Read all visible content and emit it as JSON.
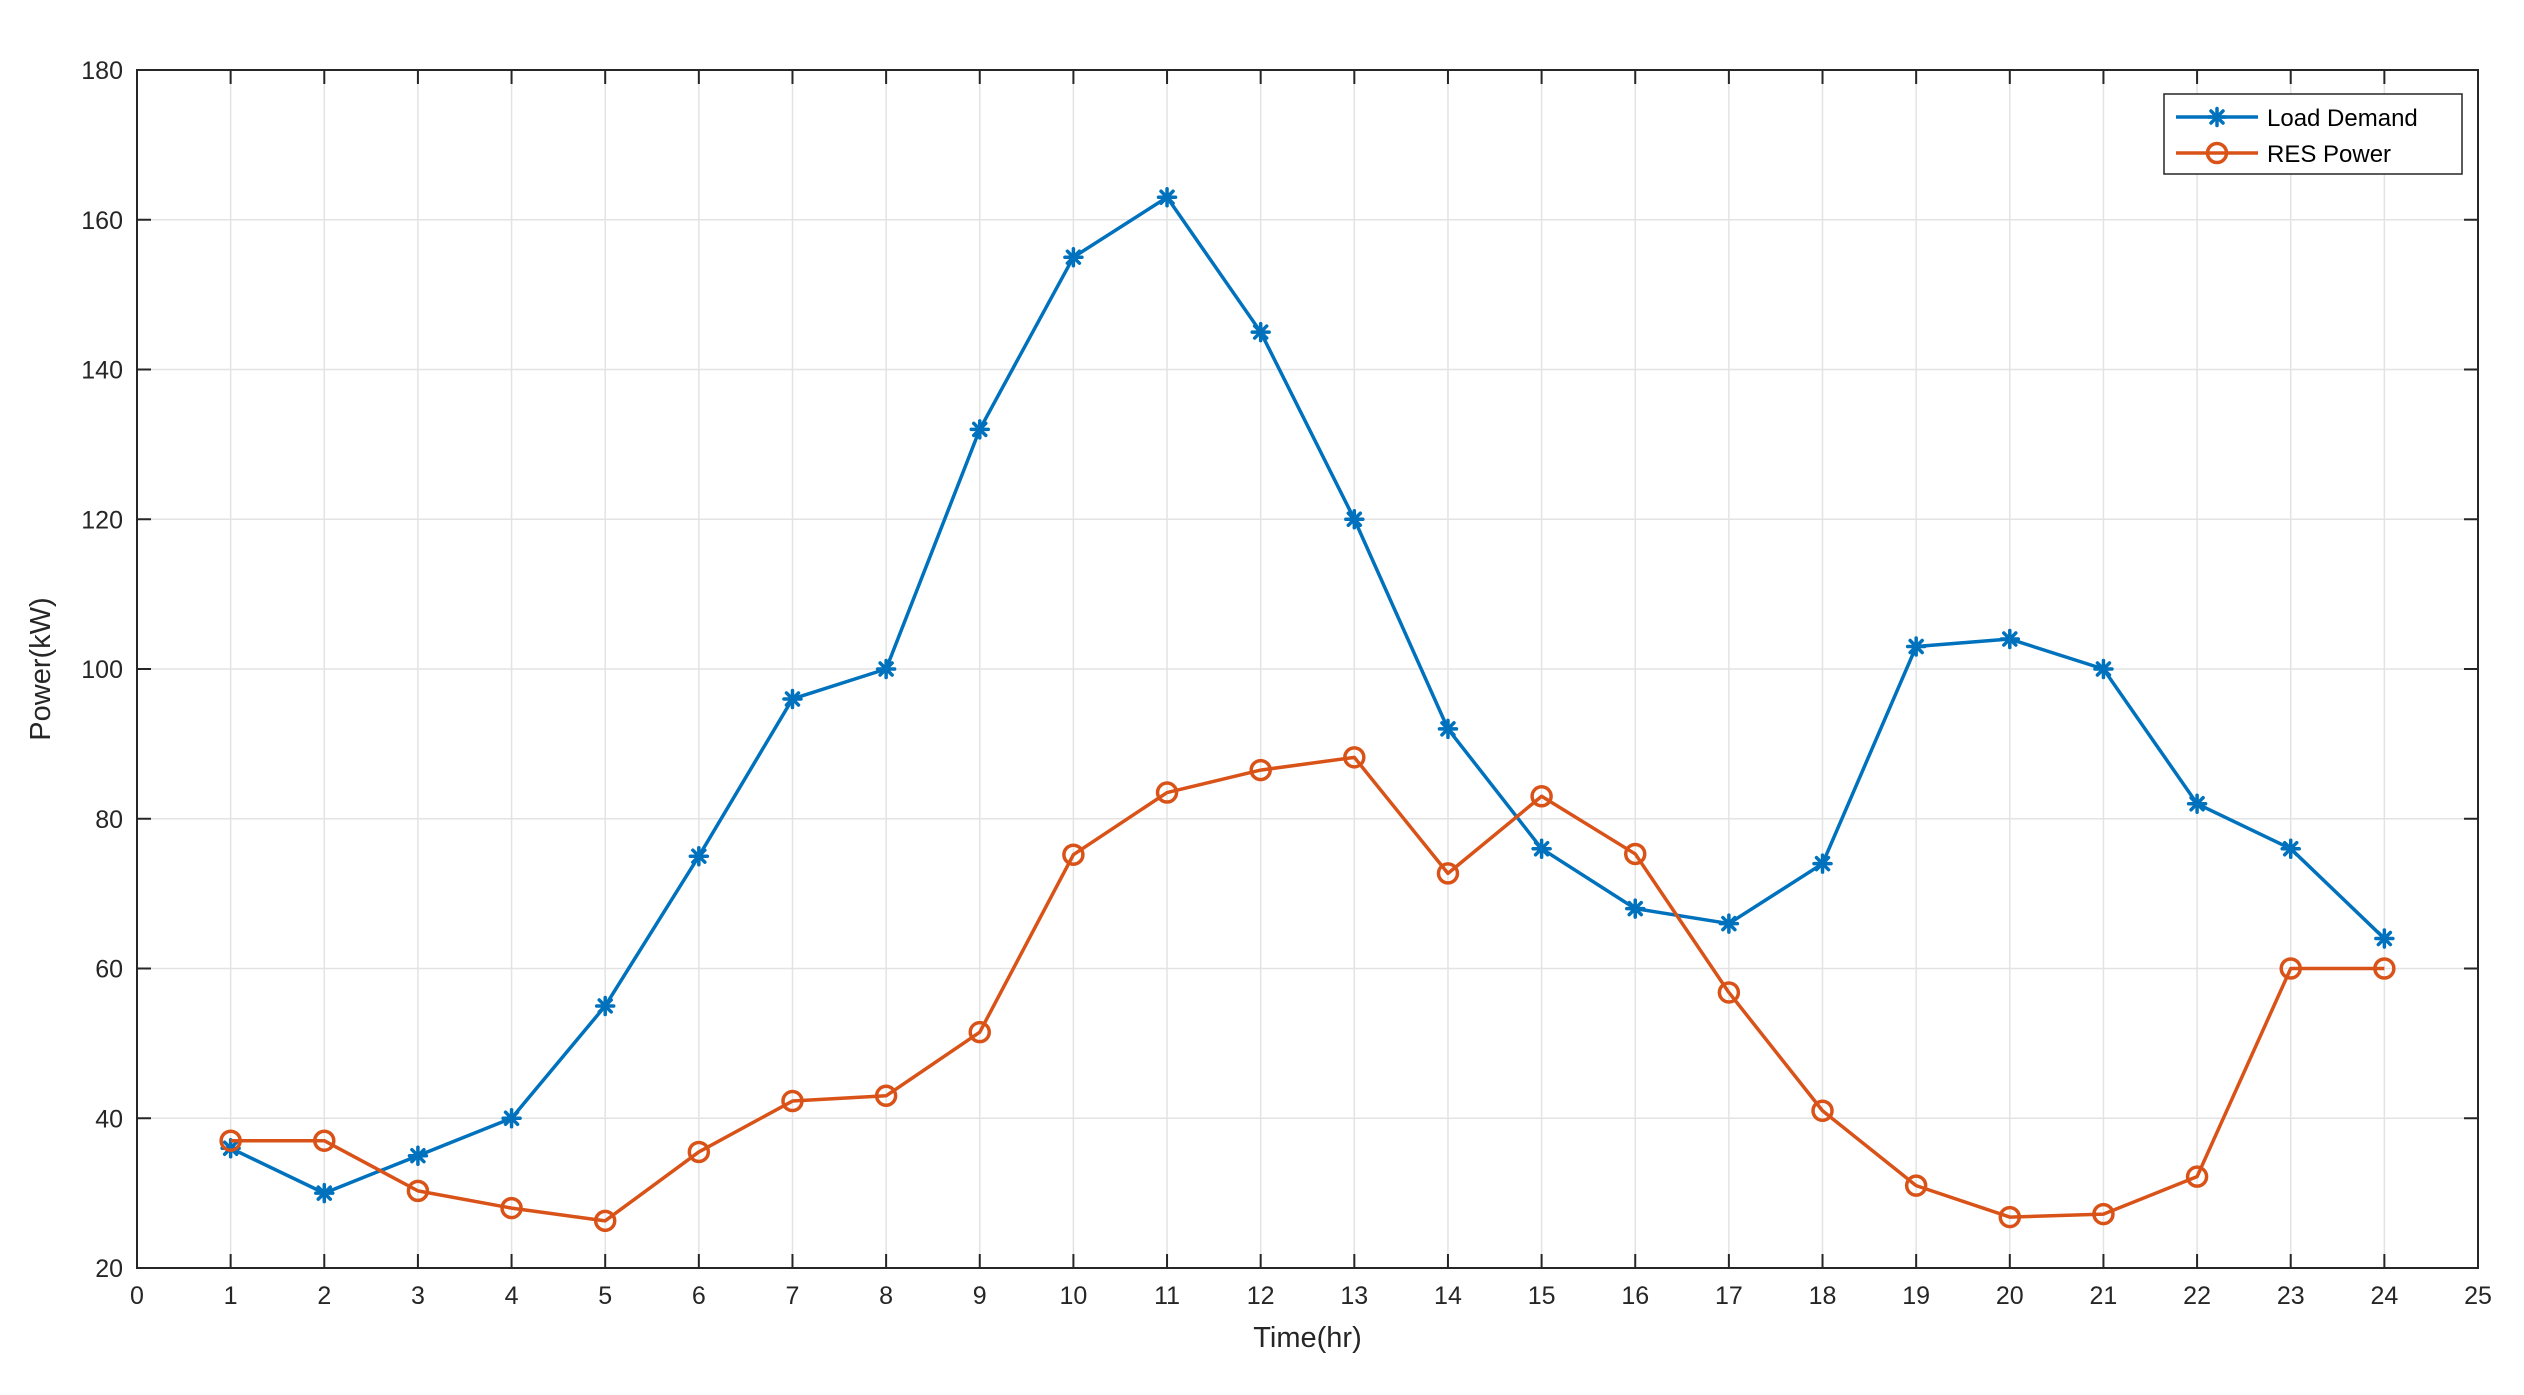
{
  "chart_data": {
    "type": "line",
    "xlabel": "Time(hr)",
    "ylabel": "Power(kW)",
    "xlim": [
      0,
      25
    ],
    "ylim": [
      20,
      180
    ],
    "xticks": [
      0,
      1,
      2,
      3,
      4,
      5,
      6,
      7,
      8,
      9,
      10,
      11,
      12,
      13,
      14,
      15,
      16,
      17,
      18,
      19,
      20,
      21,
      22,
      23,
      24,
      25
    ],
    "yticks": [
      20,
      40,
      60,
      80,
      100,
      120,
      140,
      160,
      180
    ],
    "grid": true,
    "legend_position": "top-right",
    "x": [
      1,
      2,
      3,
      4,
      5,
      6,
      7,
      8,
      9,
      10,
      11,
      12,
      13,
      14,
      15,
      16,
      17,
      18,
      19,
      20,
      21,
      22,
      23,
      24
    ],
    "series": [
      {
        "name": "Load Demand",
        "color": "#0072BD",
        "marker": "asterisk",
        "values": [
          36,
          30,
          35,
          40,
          55,
          75,
          96,
          100,
          132,
          155,
          163,
          145,
          120,
          92,
          76,
          68,
          66,
          74,
          103,
          104,
          100,
          82,
          76,
          64
        ]
      },
      {
        "name": "RES Power",
        "color": "#D95319",
        "marker": "circle",
        "values": [
          37,
          37,
          30.3,
          28,
          26.3,
          35.5,
          42.3,
          43,
          51.5,
          75.2,
          83.5,
          86.5,
          88.2,
          72.7,
          83,
          75.3,
          56.8,
          41,
          31,
          26.8,
          27.2,
          32.2,
          60,
          60
        ]
      }
    ]
  }
}
